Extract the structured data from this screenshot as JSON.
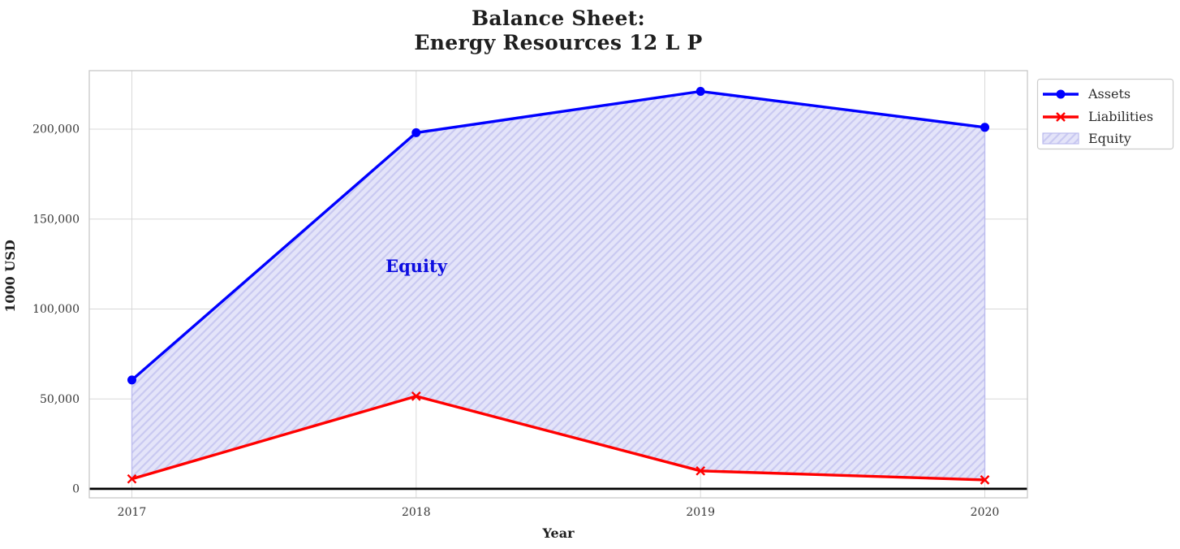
{
  "chart_data": {
    "type": "line",
    "title": "Balance Sheet: Energy Resources 12 L P",
    "title_lines": [
      "Balance Sheet:",
      "Energy Resources 12 L P"
    ],
    "xlabel": "Year",
    "ylabel": "1000 USD",
    "x": [
      2017,
      2018,
      2019,
      2020
    ],
    "xtick_labels": [
      "2017",
      "2018",
      "2019",
      "2020"
    ],
    "yticks": [
      0,
      50000,
      100000,
      150000,
      200000
    ],
    "ytick_labels": [
      "0",
      "50,000",
      "100,000",
      "150,000",
      "200,000"
    ],
    "xlim": [
      2016.85,
      2020.15
    ],
    "ylim": [
      -5000,
      232500
    ],
    "grid": true,
    "zero_line": {
      "y": 0,
      "color": "#000000"
    },
    "series": [
      {
        "name": "Assets",
        "color": "#0000ff",
        "marker": "circle",
        "values": [
          60500,
          198000,
          221000,
          201000
        ]
      },
      {
        "name": "Liabilities",
        "color": "#ff0000",
        "marker": "x",
        "values": [
          5500,
          51500,
          10000,
          5000
        ]
      }
    ],
    "area": {
      "name": "Equity",
      "between": [
        "Assets",
        "Liabilities"
      ],
      "values": [
        55000,
        146500,
        211000,
        196000
      ],
      "fill_color": "#e4e4f9",
      "hatch": "//",
      "hatch_color": "#c9c9f1",
      "edge_color": "#bcbcee"
    },
    "annotation": {
      "text": "Equity",
      "color": "#0d0de0",
      "x": 2018,
      "y": 124000
    },
    "legend": {
      "location": "upper right",
      "labels": [
        "Assets",
        "Liabilities",
        "Equity"
      ]
    }
  },
  "colors": {
    "grid": "#d8d8d8",
    "spine": "#c8c8c8",
    "tick_text": "#383838",
    "title_text": "#1f1f1f"
  }
}
